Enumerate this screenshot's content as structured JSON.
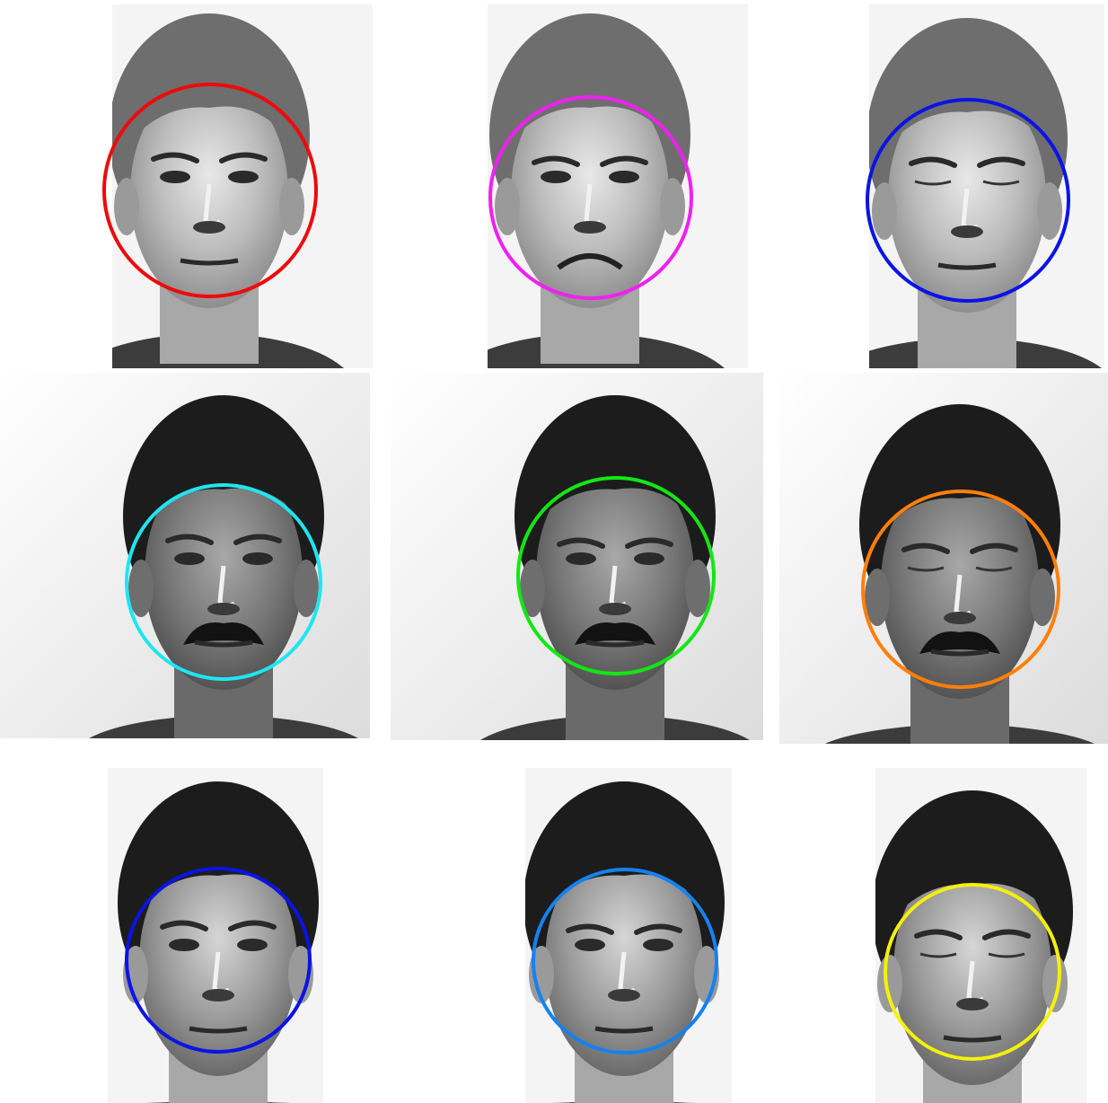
{
  "figure": {
    "rows": 3,
    "cols": 3,
    "background": "#ffffff",
    "panels": [
      {
        "subject": "subject-1",
        "expression": "neutral",
        "hair": "light",
        "mustache": false,
        "eyes": "open",
        "mouth": "neutral",
        "circle_color": "#ee0a0a"
      },
      {
        "subject": "subject-1",
        "expression": "frown",
        "hair": "light",
        "mustache": false,
        "eyes": "open",
        "mouth": "frown",
        "circle_color": "#f020f0"
      },
      {
        "subject": "subject-1",
        "expression": "eyes-closed",
        "hair": "light",
        "mustache": false,
        "eyes": "closed",
        "mouth": "neutral",
        "circle_color": "#0a14e6"
      },
      {
        "subject": "subject-2",
        "expression": "neutral",
        "hair": "dark",
        "mustache": true,
        "eyes": "open",
        "mouth": "neutral",
        "circle_color": "#1ee6f0"
      },
      {
        "subject": "subject-2",
        "expression": "squint",
        "hair": "dark",
        "mustache": true,
        "eyes": "open",
        "mouth": "neutral",
        "circle_color": "#14e614"
      },
      {
        "subject": "subject-2",
        "expression": "eyes-closed",
        "hair": "dark",
        "mustache": true,
        "eyes": "closed",
        "mouth": "neutral",
        "circle_color": "#ff7f0a"
      },
      {
        "subject": "subject-3",
        "expression": "neutral",
        "hair": "dark",
        "mustache": false,
        "eyes": "open",
        "mouth": "neutral",
        "circle_color": "#0a14e6"
      },
      {
        "subject": "subject-3",
        "expression": "frown",
        "hair": "dark",
        "mustache": false,
        "eyes": "open",
        "mouth": "neutral",
        "circle_color": "#1482f0"
      },
      {
        "subject": "subject-3",
        "expression": "eyes-closed",
        "hair": "dark",
        "mustache": false,
        "eyes": "closed",
        "mouth": "neutral",
        "circle_color": "#f5f00a"
      }
    ]
  }
}
